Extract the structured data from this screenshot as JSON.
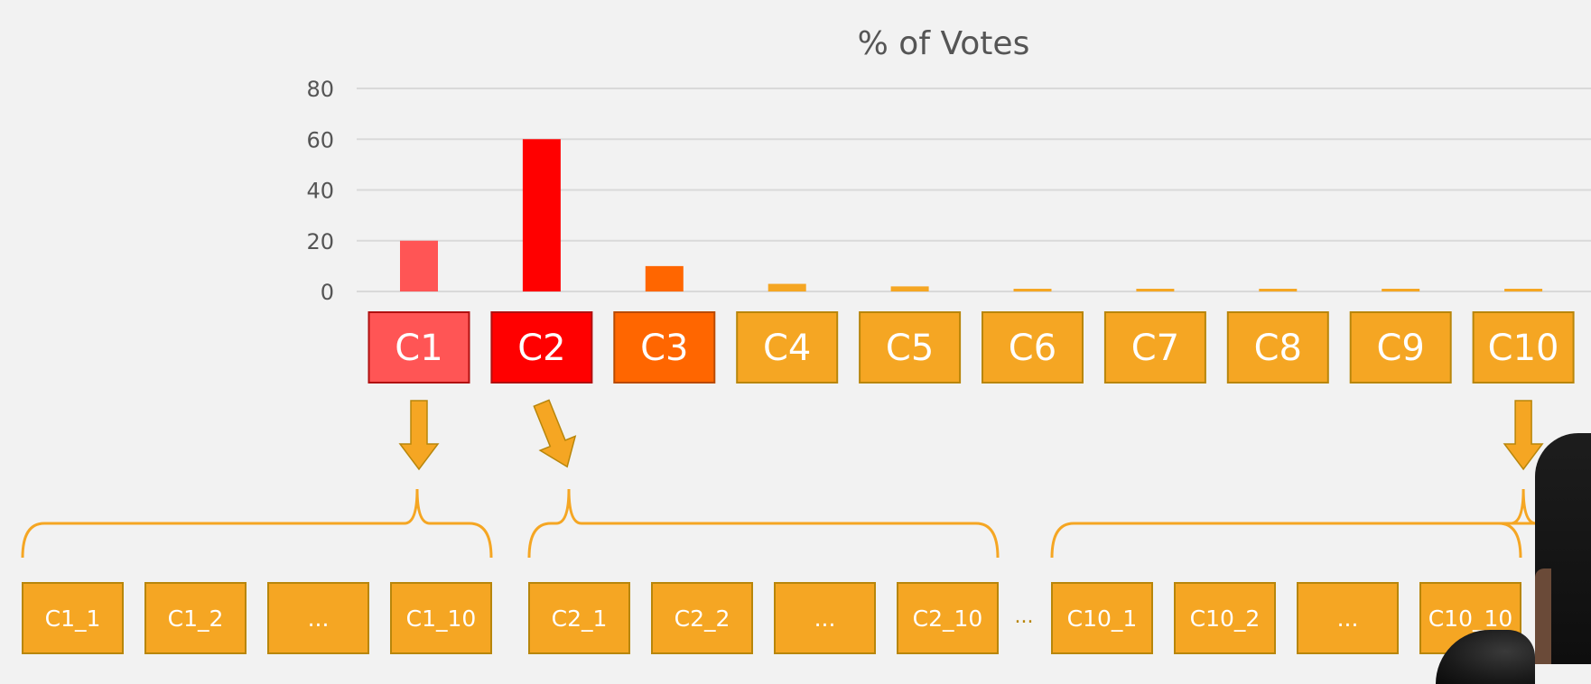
{
  "chart_data": {
    "type": "bar",
    "title": "% of Votes",
    "categories": [
      "C1",
      "C2",
      "C3",
      "C4",
      "C5",
      "C6",
      "C7",
      "C8",
      "C9",
      "C10"
    ],
    "values": [
      20,
      60,
      10,
      3,
      2,
      1,
      1,
      1,
      1,
      1
    ],
    "bar_colors": [
      "#ff5555",
      "#ff0000",
      "#ff6600",
      "#f5a623",
      "#f5a623",
      "#f5a623",
      "#f5a623",
      "#f5a623",
      "#f5a623",
      "#f5a623"
    ],
    "ylim": [
      0,
      80
    ],
    "yticks": [
      "0",
      "20",
      "40",
      "60",
      "80"
    ],
    "grid": true,
    "xlabel": "",
    "ylabel": ""
  },
  "sub_groups": [
    {
      "parent": "C1",
      "items": [
        "C1_1",
        "C1_2",
        "...",
        "C1_10"
      ]
    },
    {
      "parent": "C2",
      "items": [
        "C2_1",
        "C2_2",
        "...",
        "C2_10"
      ]
    },
    {
      "parent": "C10",
      "items": [
        "C10_1",
        "C10_2",
        "...",
        "C10_10"
      ]
    }
  ],
  "group_separator": "...",
  "colors": {
    "orange": "#f5a623",
    "box_border": "#b8860b",
    "grid": "#d9d9d9",
    "text": "#555555"
  }
}
